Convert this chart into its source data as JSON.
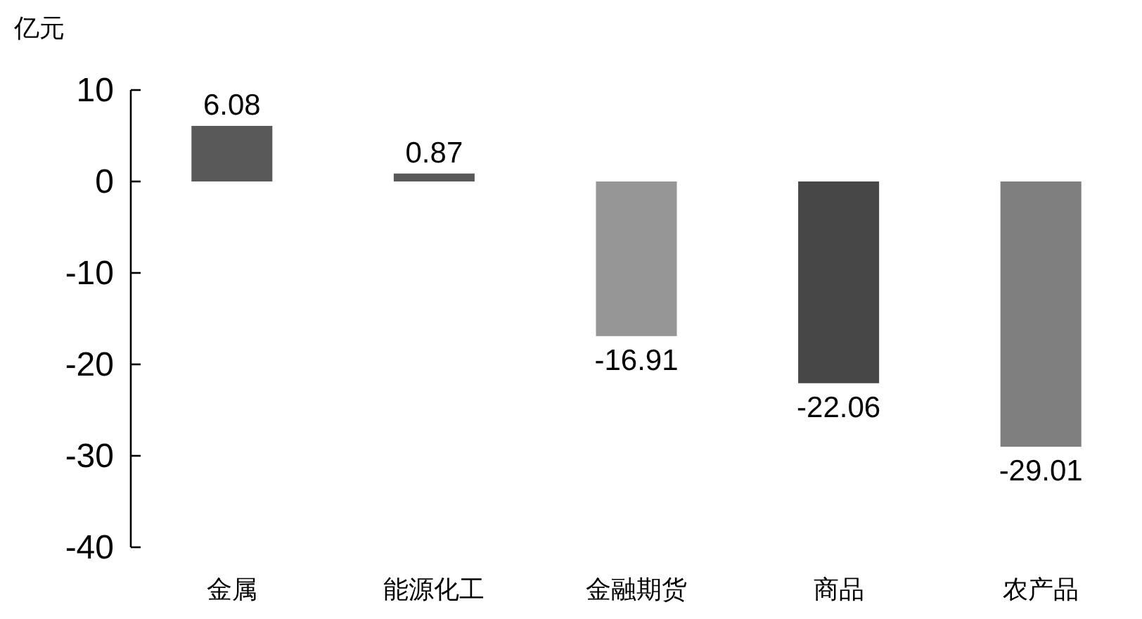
{
  "chart_data": {
    "type": "bar",
    "ylabel": "亿元",
    "categories": [
      "金属",
      "能源化工",
      "金融期货",
      "商品",
      "农产品"
    ],
    "values": [
      6.08,
      0.87,
      -16.91,
      -22.06,
      -29.01
    ],
    "colors": [
      "#595959",
      "#595959",
      "#969696",
      "#474747",
      "#7f7f7f"
    ],
    "ylim": [
      -40,
      10
    ],
    "yticks": [
      -40,
      -30,
      -20,
      -10,
      0,
      10
    ],
    "data_labels": true,
    "grid": false
  }
}
